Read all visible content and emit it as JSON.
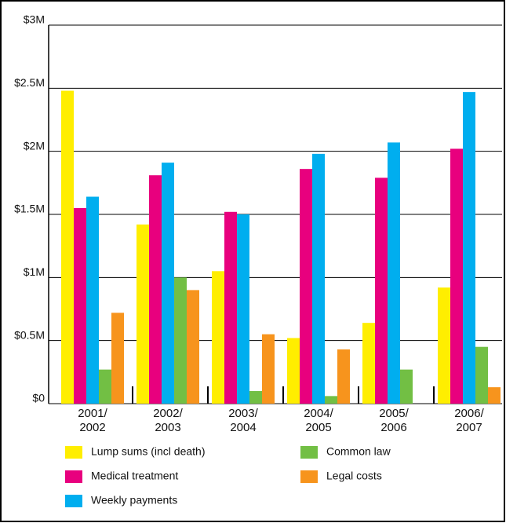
{
  "chart_data": {
    "type": "bar",
    "categories": [
      "2001/\n2002",
      "2002/\n2003",
      "2003/\n2004",
      "2004/\n2005",
      "2005/\n2006",
      "2006/\n2007"
    ],
    "series": [
      {
        "name": "Lump sums (incl death)",
        "color": "#ffee00",
        "values": [
          2.48,
          1.42,
          1.05,
          0.52,
          0.64,
          0.92
        ]
      },
      {
        "name": "Medical treatment",
        "color": "#e8007e",
        "values": [
          1.55,
          1.81,
          1.52,
          1.86,
          1.79,
          2.02
        ]
      },
      {
        "name": "Weekly payments",
        "color": "#00aeef",
        "values": [
          1.64,
          1.91,
          1.5,
          1.98,
          2.07,
          2.47
        ]
      },
      {
        "name": "Common law",
        "color": "#72bf44",
        "values": [
          0.27,
          1.0,
          0.1,
          0.06,
          0.27,
          0.45
        ]
      },
      {
        "name": "Legal costs",
        "color": "#f7941d",
        "values": [
          0.72,
          0.9,
          0.55,
          0.43,
          null,
          0.13
        ]
      }
    ],
    "ylim": [
      0,
      3
    ],
    "yticks": [
      {
        "value": 0,
        "label": "$0"
      },
      {
        "value": 0.5,
        "label": "$0.5M"
      },
      {
        "value": 1,
        "label": "$1M"
      },
      {
        "value": 1.5,
        "label": "$1.5M"
      },
      {
        "value": 2,
        "label": "$2M"
      },
      {
        "value": 2.5,
        "label": "$2.5M"
      },
      {
        "value": 3,
        "label": "$3M"
      }
    ],
    "grid": true
  }
}
